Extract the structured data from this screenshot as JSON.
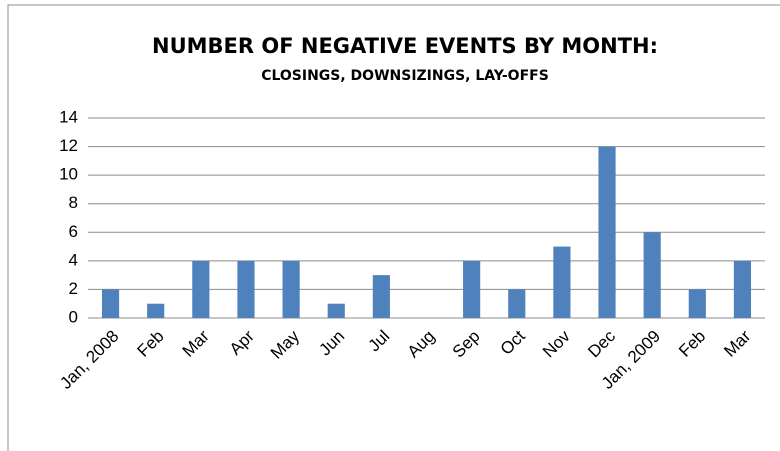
{
  "chart_data": {
    "type": "bar",
    "title": "NUMBER OF NEGATIVE EVENTS BY MONTH:",
    "subtitle": "CLOSINGS, DOWNSIZINGS, LAY-OFFS",
    "categories": [
      "Jan, 2008",
      "Feb",
      "Mar",
      "Apr",
      "May",
      "Jun",
      "Jul",
      "Aug",
      "Sep",
      "Oct",
      "Nov",
      "Dec",
      "Jan, 2009",
      "Feb",
      "Mar"
    ],
    "values": [
      2,
      1,
      4,
      4,
      4,
      1,
      3,
      0,
      4,
      2,
      5,
      12,
      6,
      2,
      4
    ],
    "color": "#4f81bd",
    "ylim": [
      0,
      14
    ],
    "yticks": [
      0,
      2,
      4,
      6,
      8,
      10,
      12,
      14
    ],
    "grid": true
  }
}
